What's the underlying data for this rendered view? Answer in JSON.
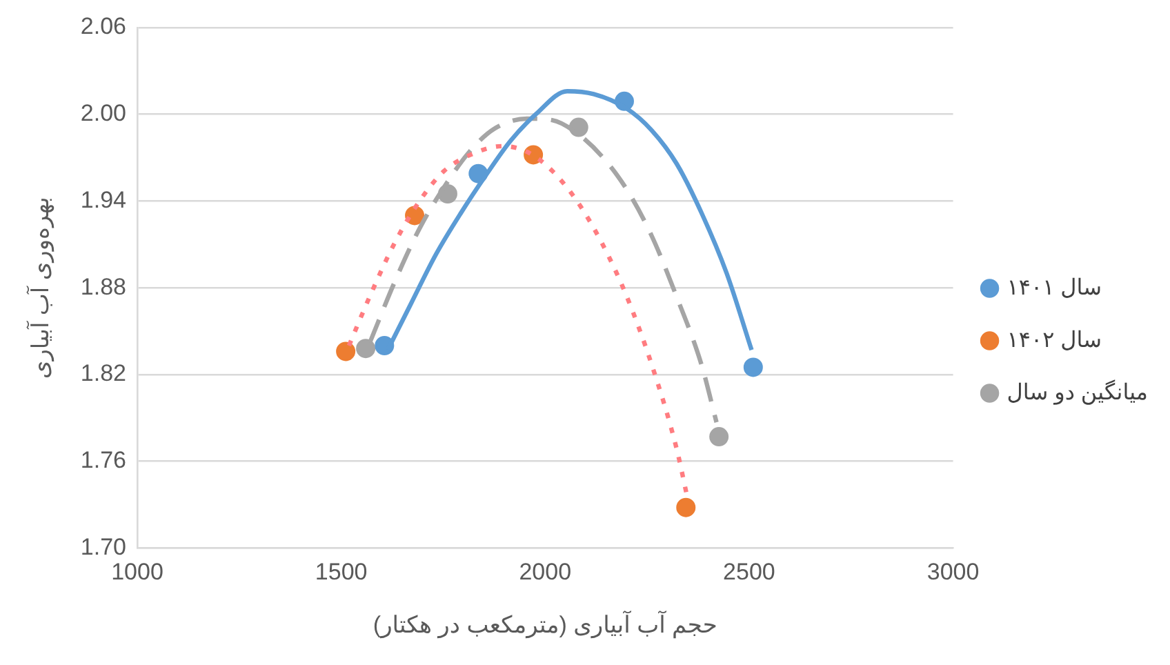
{
  "chart_data": {
    "type": "scatter",
    "xlabel": "حجم آب آبیاری (مترمکعب در هکتار)",
    "ylabel": "بهره‌وری آب آبیاری",
    "xlim": [
      1000,
      3000
    ],
    "xticks": [
      1000,
      1500,
      2000,
      2500,
      3000
    ],
    "ylim": [
      1.7,
      2.06
    ],
    "yticks": [
      {
        "value": 1.7,
        "label": "1.70"
      },
      {
        "value": 1.76,
        "label": "1.76"
      },
      {
        "value": 1.82,
        "label": "1.82"
      },
      {
        "value": 1.88,
        "label": "1.88"
      },
      {
        "value": 1.94,
        "label": "1.94"
      },
      {
        "value": 2.0,
        "label": "2.00"
      },
      {
        "value": 2.06,
        "label": "2.06"
      }
    ],
    "grid": "y",
    "legend": "right",
    "marker": "circle",
    "series": [
      {
        "name": "سال ۱۴۰۱",
        "color": "#5b9bd5",
        "x": [
          1606,
          1836,
          2194,
          2510
        ],
        "values": [
          1.84,
          1.959,
          2.009,
          1.825
        ]
      },
      {
        "name": "سال ۱۴۰۲",
        "color": "#ed7d31",
        "x": [
          1511,
          1680,
          1971,
          2345
        ],
        "values": [
          1.836,
          1.93,
          1.972,
          1.728
        ]
      },
      {
        "name": "میانگین دو سال",
        "color": "#a5a5a5",
        "x": [
          1560,
          1761,
          2082,
          2426
        ],
        "values": [
          1.838,
          1.945,
          1.991,
          1.777
        ]
      },
      {
        "type": "line",
        "marker": "none",
        "line_style": "solid",
        "color": "#5b9bd5",
        "x": [
          1614,
          1671,
          1732,
          1794,
          1855,
          1916,
          1977,
          2054,
          2119,
          2200,
          2261,
          2322,
          2383,
          2445,
          2506
        ],
        "values": [
          1.837,
          1.869,
          1.903,
          1.932,
          1.958,
          1.982,
          2.0,
          2.016,
          2.014,
          2.004,
          1.989,
          1.966,
          1.932,
          1.89,
          1.837
        ]
      },
      {
        "type": "line",
        "marker": "none",
        "line_style": "dotted",
        "color": "#ff7c80",
        "x": [
          1519,
          1570,
          1631,
          1692,
          1753,
          1834,
          1895,
          1956,
          2017,
          2078,
          2139,
          2200,
          2261,
          2322,
          2347
        ],
        "values": [
          1.84,
          1.874,
          1.911,
          1.94,
          1.961,
          1.974,
          1.978,
          1.974,
          1.961,
          1.94,
          1.911,
          1.874,
          1.827,
          1.769,
          1.737
        ]
      },
      {
        "type": "line",
        "marker": "none",
        "line_style": "dashed",
        "color": "#a5a5a5",
        "x": [
          1570,
          1631,
          1692,
          1753,
          1814,
          1875,
          1956,
          2017,
          2078,
          2139,
          2200,
          2261,
          2322,
          2383,
          2420
        ],
        "values": [
          1.842,
          1.884,
          1.921,
          1.95,
          1.974,
          1.99,
          1.997,
          1.996,
          1.987,
          1.971,
          1.948,
          1.916,
          1.874,
          1.827,
          1.787
        ]
      }
    ]
  }
}
